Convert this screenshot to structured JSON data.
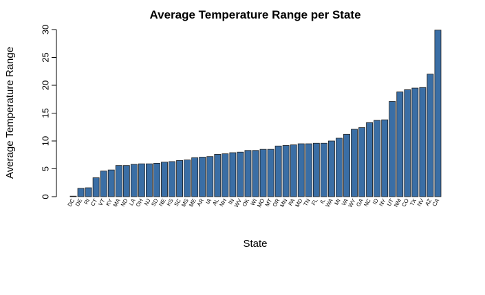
{
  "chart_data": {
    "type": "bar",
    "title": "Average Temperature Range per State",
    "xlabel": "State",
    "ylabel": "Average Temperature Range",
    "ylim": [
      0,
      30
    ],
    "yticks": [
      0,
      5,
      10,
      15,
      20,
      25,
      30
    ],
    "grid": false,
    "legend": "none",
    "bar_color": "#3a6ea5",
    "categories": [
      "DC",
      "DE",
      "RI",
      "CT",
      "VT",
      "KY",
      "MA",
      "ND",
      "LA",
      "OH",
      "NJ",
      "SD",
      "NE",
      "KS",
      "SC",
      "MS",
      "ME",
      "AR",
      "IA",
      "AL",
      "NH",
      "IN",
      "WV",
      "OK",
      "WI",
      "MO",
      "MT",
      "OR",
      "MN",
      "PA",
      "MD",
      "TN",
      "FL",
      "IL",
      "WA",
      "MI",
      "VA",
      "WY",
      "GA",
      "NC",
      "ID",
      "NY",
      "UT",
      "NM",
      "CO",
      "TX",
      "NV",
      "AZ",
      "CA"
    ],
    "values": [
      0.1,
      1.5,
      1.6,
      3.4,
      4.6,
      4.8,
      5.6,
      5.6,
      5.8,
      5.9,
      5.9,
      6.0,
      6.2,
      6.3,
      6.5,
      6.6,
      7.0,
      7.1,
      7.2,
      7.6,
      7.7,
      7.9,
      8.0,
      8.3,
      8.3,
      8.5,
      8.5,
      9.1,
      9.2,
      9.3,
      9.5,
      9.5,
      9.6,
      9.6,
      10.0,
      10.5,
      11.2,
      12.1,
      12.4,
      13.3,
      13.7,
      13.8,
      17.1,
      18.8,
      19.2,
      19.5,
      19.6,
      22.0,
      29.9
    ]
  }
}
